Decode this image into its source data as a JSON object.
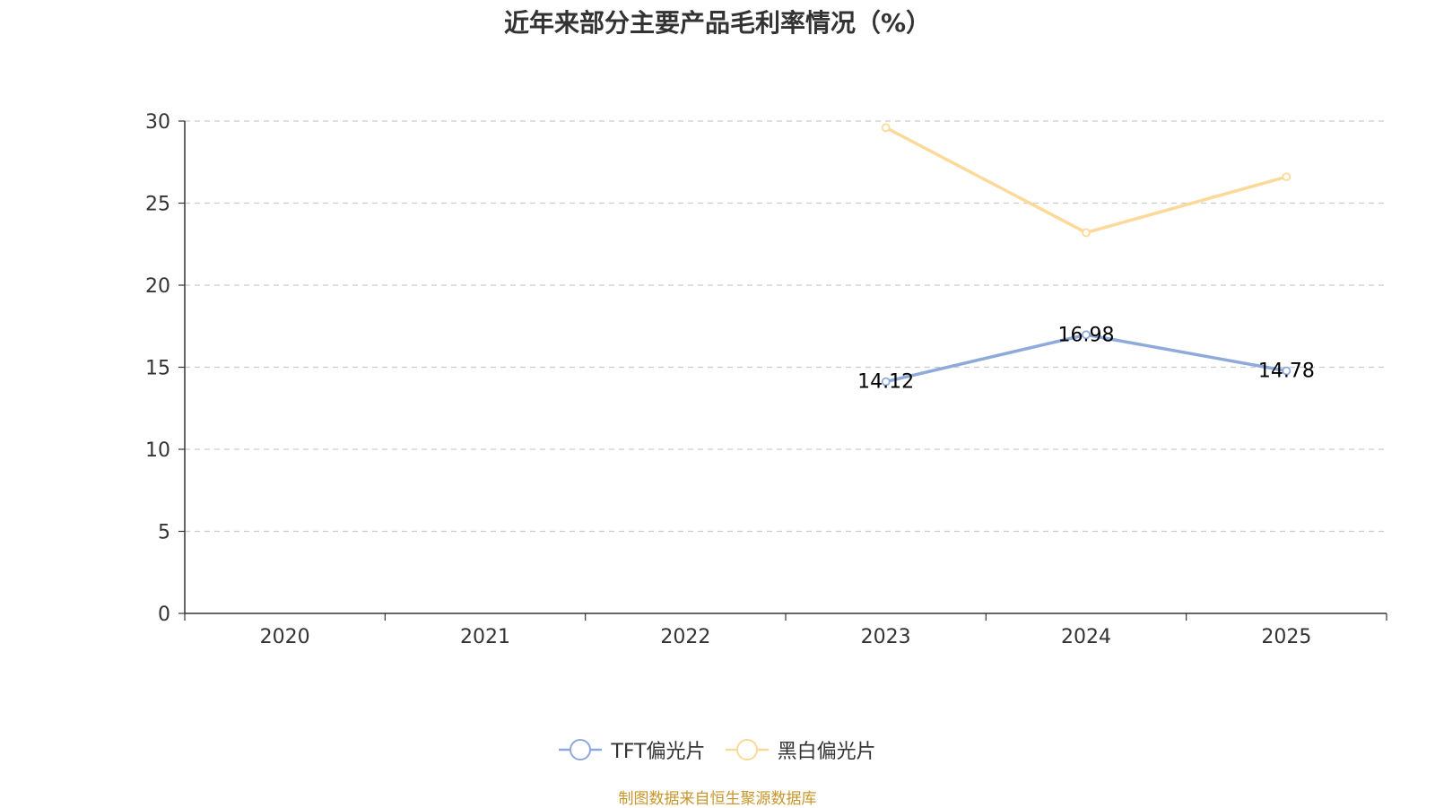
{
  "footer": {
    "source": "制图数据来自恒生聚源数据库"
  },
  "chart_data": {
    "type": "line",
    "title": "近年来部分主要产品毛利率情况（%）",
    "xlabel": "",
    "ylabel": "",
    "categories": [
      "2020",
      "2021",
      "2022",
      "2023",
      "2024",
      "2025"
    ],
    "ylim": [
      0,
      30
    ],
    "yticks": [
      0,
      5,
      10,
      15,
      20,
      25,
      30
    ],
    "grid": true,
    "grid_style": "dashed",
    "legend_position": "bottom",
    "series": [
      {
        "name": "TFT偏光片",
        "color": "#8eaadb",
        "values": [
          null,
          null,
          null,
          14.12,
          16.98,
          14.78
        ],
        "show_labels": true
      },
      {
        "name": "黑白偏光片",
        "color": "#fdd999",
        "values": [
          null,
          null,
          null,
          29.6,
          23.2,
          26.6
        ],
        "show_labels": false
      }
    ]
  }
}
